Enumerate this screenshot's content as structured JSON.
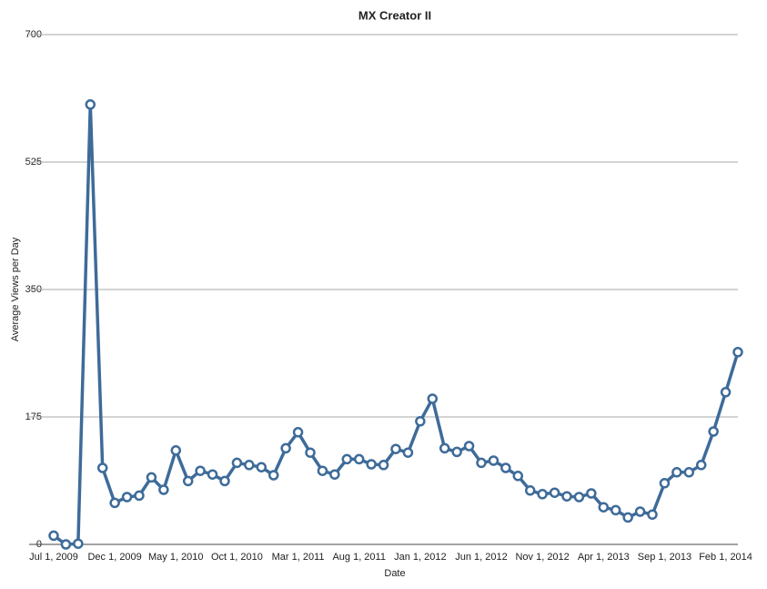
{
  "chart_data": {
    "type": "line",
    "title": "MX Creator II",
    "x_label": "Date",
    "y_label": "Average Views per Day",
    "categories": [
      "Jul 1, 2009",
      null,
      null,
      null,
      null,
      "Dec 1, 2009",
      null,
      null,
      null,
      null,
      "May 1, 2010",
      null,
      null,
      null,
      null,
      "Oct 1, 2010",
      null,
      null,
      null,
      null,
      "Mar 1, 2011",
      null,
      null,
      null,
      null,
      "Aug 1, 2011",
      null,
      null,
      null,
      null,
      "Jan 1, 2012",
      null,
      null,
      null,
      null,
      "Jun 1, 2012",
      null,
      null,
      null,
      null,
      "Nov 1, 2012",
      null,
      null,
      null,
      null,
      "Apr 1, 2013",
      null,
      null,
      null,
      null,
      "Sep 1, 2013",
      null,
      null,
      null,
      null,
      "Feb 1, 2014",
      null
    ],
    "series": [
      {
        "name": "Average Views per Day",
        "color": "#3e6b99",
        "values": [
          12,
          0,
          1,
          604,
          105,
          57,
          65,
          67,
          92,
          75,
          129,
          87,
          101,
          96,
          87,
          112,
          109,
          106,
          95,
          132,
          154,
          126,
          101,
          96,
          117,
          117,
          110,
          109,
          131,
          126,
          169,
          200,
          132,
          127,
          135,
          112,
          115,
          105,
          94,
          74,
          69,
          71,
          66,
          65,
          70,
          51,
          47,
          37,
          45,
          41,
          84,
          99,
          99,
          109,
          155,
          209,
          264
        ]
      }
    ],
    "ylim": [
      0,
      700
    ],
    "yticks": [
      0,
      175,
      350,
      525,
      700
    ],
    "grid": true
  }
}
